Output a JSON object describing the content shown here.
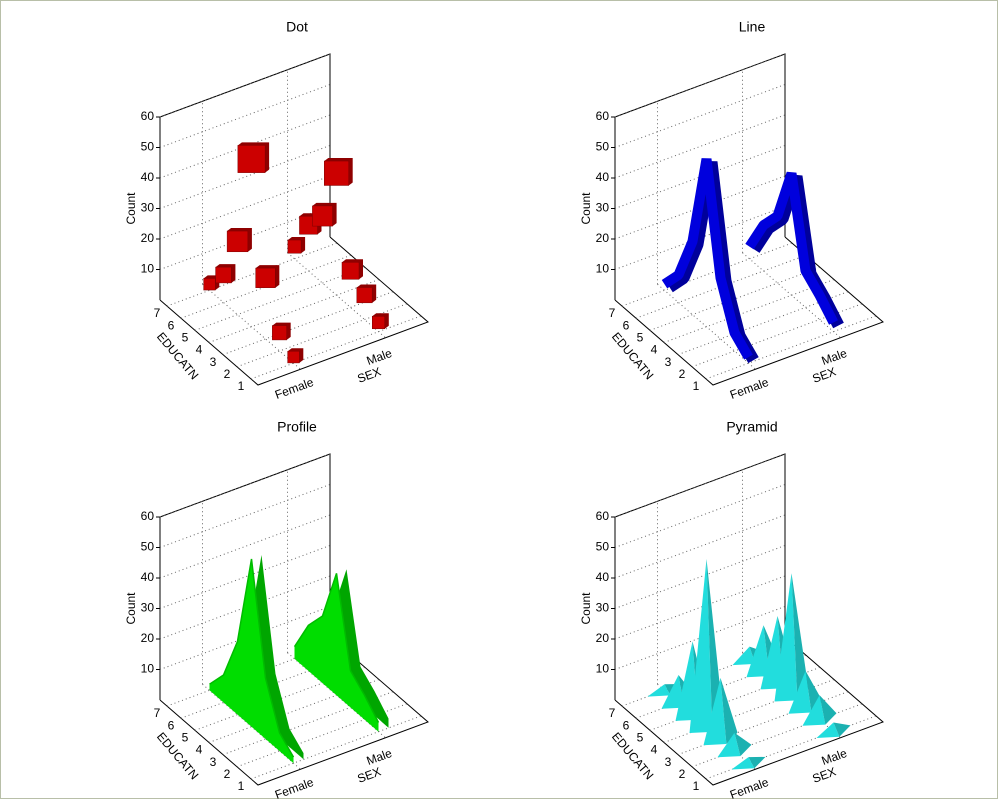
{
  "chart_data": [
    {
      "type": "dot",
      "title": "Dot",
      "xlabel": "EDUCATN",
      "zlabel": "SEX",
      "ylabel": "Count",
      "categories": [
        "1",
        "2",
        "3",
        "4",
        "5",
        "6",
        "7"
      ],
      "series": [
        {
          "name": "Female",
          "color": "#cc0000",
          "values": [
            2,
            6,
            20,
            55,
            24,
            9,
            2
          ]
        },
        {
          "name": "Male",
          "color": "#cc0000",
          "values": [
            3,
            8,
            12,
            40,
            22,
            15,
            4
          ]
        }
      ],
      "ylim": [
        0,
        60
      ],
      "yticks": [
        10,
        20,
        30,
        40,
        50,
        60
      ],
      "grid": true
    },
    {
      "type": "line",
      "title": "Line",
      "xlabel": "EDUCATN",
      "zlabel": "SEX",
      "ylabel": "Count",
      "categories": [
        "1",
        "2",
        "3",
        "4",
        "5",
        "6",
        "7"
      ],
      "series": [
        {
          "name": "Female",
          "color": "#0000dd",
          "values": [
            2,
            6,
            20,
            55,
            24,
            9,
            2
          ]
        },
        {
          "name": "Male",
          "color": "#0000dd",
          "values": [
            3,
            8,
            12,
            40,
            22,
            15,
            4
          ]
        }
      ],
      "ylim": [
        0,
        60
      ],
      "yticks": [
        10,
        20,
        30,
        40,
        50,
        60
      ],
      "grid": true
    },
    {
      "type": "profile",
      "title": "Profile",
      "xlabel": "EDUCATN",
      "zlabel": "SEX",
      "ylabel": "Count",
      "categories": [
        "1",
        "2",
        "3",
        "4",
        "5",
        "6",
        "7"
      ],
      "series": [
        {
          "name": "Female",
          "color": "#00dd00",
          "values": [
            2,
            6,
            20,
            55,
            24,
            9,
            2
          ]
        },
        {
          "name": "Male",
          "color": "#00dd00",
          "values": [
            3,
            8,
            12,
            40,
            22,
            15,
            4
          ]
        }
      ],
      "ylim": [
        0,
        60
      ],
      "yticks": [
        10,
        20,
        30,
        40,
        50,
        60
      ],
      "grid": true
    },
    {
      "type": "pyramid",
      "title": "Pyramid",
      "xlabel": "EDUCATN",
      "zlabel": "SEX",
      "ylabel": "Count",
      "categories": [
        "1",
        "2",
        "3",
        "4",
        "5",
        "6",
        "7"
      ],
      "series": [
        {
          "name": "Female",
          "color": "#22dddd",
          "values": [
            2,
            6,
            20,
            55,
            24,
            9,
            2
          ]
        },
        {
          "name": "Male",
          "color": "#22dddd",
          "values": [
            3,
            8,
            12,
            40,
            22,
            15,
            4
          ]
        }
      ],
      "ylim": [
        0,
        60
      ],
      "yticks": [
        10,
        20,
        30,
        40,
        50,
        60
      ],
      "grid": true
    }
  ]
}
